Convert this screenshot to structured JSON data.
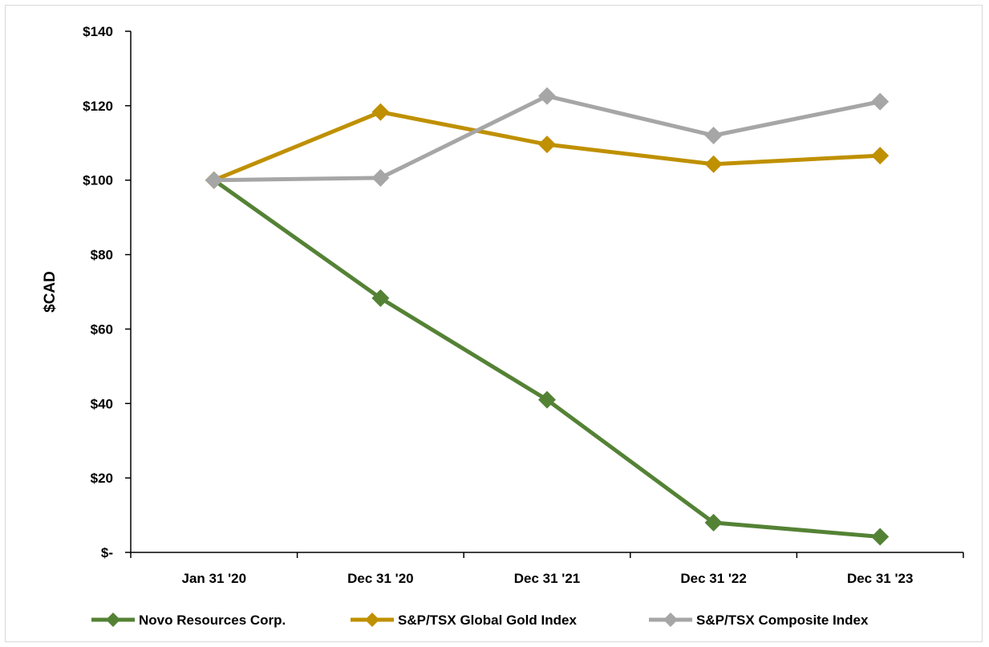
{
  "chart_data": {
    "type": "line",
    "title": "",
    "xlabel": "",
    "ylabel": "$CAD",
    "categories": [
      "Jan 31 '20",
      "Dec 31 '20",
      "Dec 31 '21",
      "Dec 31 '22",
      "Dec 31 '23"
    ],
    "ylim": [
      0,
      140
    ],
    "yticks": [
      0,
      20,
      40,
      60,
      80,
      100,
      120,
      140
    ],
    "ytick_labels": [
      "$-",
      "$20",
      "$40",
      "$60",
      "$80",
      "$100",
      "$120",
      "$140"
    ],
    "grid": false,
    "legend_position": "bottom",
    "series": [
      {
        "name": "Novo Resources Corp.",
        "color": "#548235",
        "values": [
          100,
          68.3,
          41.0,
          8.0,
          4.2
        ]
      },
      {
        "name": "S&P/TSX Global Gold Index",
        "color": "#bf9000",
        "values": [
          100,
          118.3,
          109.6,
          104.3,
          106.6
        ]
      },
      {
        "name": "S&P/TSX Composite Index",
        "color": "#a6a6a6",
        "values": [
          100,
          100.6,
          122.6,
          112.0,
          121.1
        ]
      }
    ]
  }
}
